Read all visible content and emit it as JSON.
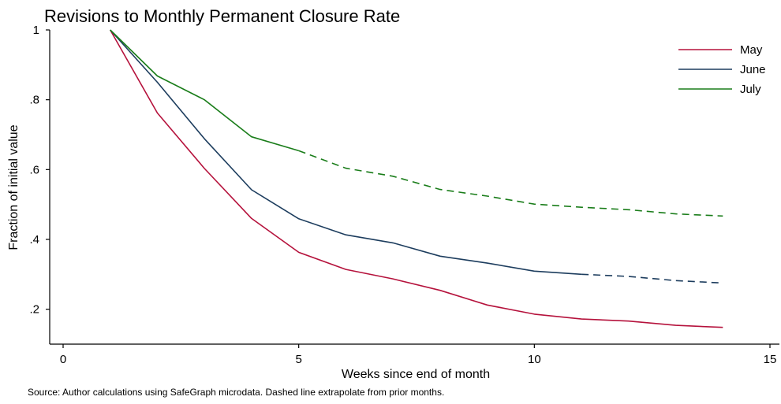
{
  "chart_data": {
    "type": "line",
    "title": "Revisions to Monthly Permanent Closure Rate",
    "xlabel": "Weeks since end of month",
    "ylabel": "Fraction of initial value",
    "xlim": [
      0,
      15
    ],
    "ylim": [
      0.1,
      1
    ],
    "xticks": [
      0,
      5,
      10,
      15
    ],
    "xtick_labels": [
      "0",
      "5",
      "10",
      "15"
    ],
    "yticks": [
      0.2,
      0.4,
      0.6,
      0.8,
      1
    ],
    "ytick_labels": [
      ".2",
      ".4",
      ".6",
      ".8",
      "1"
    ],
    "grid": false,
    "legend_position": "top-right",
    "note": "Source: Author calculations using SafeGraph microdata. Dashed line extrapolate from prior months.",
    "series": [
      {
        "name": "May",
        "color": "#b5123c",
        "x": [
          1,
          2,
          3,
          4,
          5,
          6,
          7,
          8,
          9,
          10,
          11,
          12,
          13,
          14
        ],
        "y": [
          1.0,
          0.762,
          0.603,
          0.46,
          0.363,
          0.314,
          0.287,
          0.254,
          0.212,
          0.186,
          0.172,
          0.166,
          0.154,
          0.148
        ],
        "observed_until": 14
      },
      {
        "name": "June",
        "color": "#1d3d5e",
        "x": [
          1,
          2,
          3,
          4,
          5,
          6,
          7,
          8,
          9,
          10,
          11,
          12,
          13,
          14
        ],
        "y": [
          1.0,
          0.85,
          0.688,
          0.542,
          0.459,
          0.413,
          0.39,
          0.352,
          0.332,
          0.309,
          0.3,
          0.294,
          0.282,
          0.275
        ],
        "observed_until": 11
      },
      {
        "name": "July",
        "color": "#1a7d1a",
        "x": [
          1,
          2,
          3,
          4,
          5,
          6,
          7,
          8,
          9,
          10,
          11,
          12,
          13,
          14
        ],
        "y": [
          1.0,
          0.868,
          0.8,
          0.694,
          0.654,
          0.604,
          0.581,
          0.543,
          0.524,
          0.501,
          0.492,
          0.485,
          0.473,
          0.467
        ],
        "observed_until": 5
      }
    ]
  }
}
